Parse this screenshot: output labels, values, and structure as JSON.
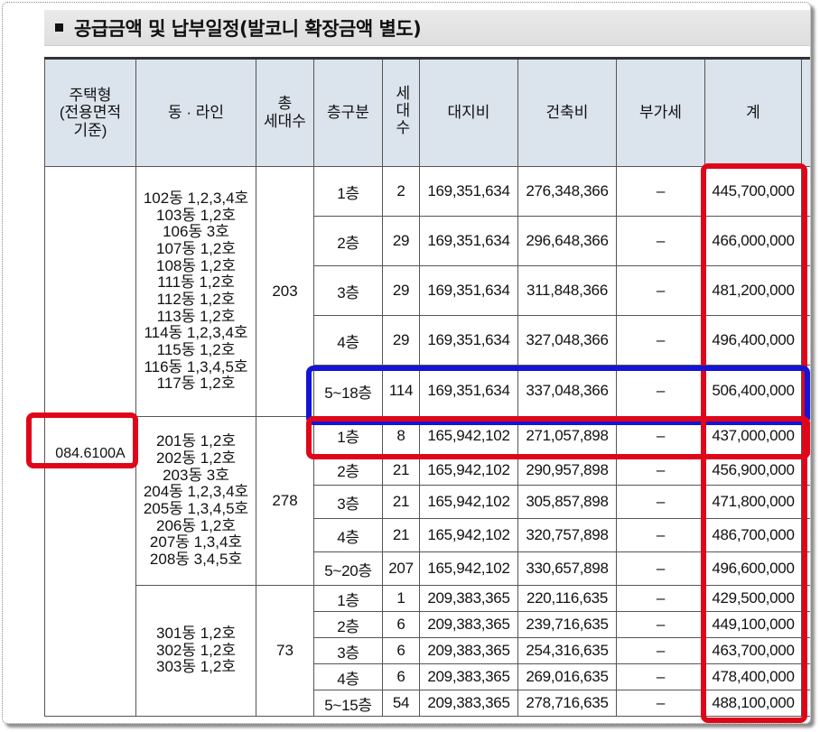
{
  "title": "공급금액 및 납부일정(발코니 확장금액 별도)",
  "headers": {
    "type": "주택형\n(전용면적\n기준)",
    "dong": "동 · 라인",
    "total_units": "총\n세대수",
    "floor": "층구분",
    "units": "세대수",
    "land": "대지비",
    "building": "건축비",
    "vat": "부가세",
    "sum": "계"
  },
  "housing_type": "084.6100A",
  "groups": [
    {
      "dongs": [
        "102동 1,2,3,4호",
        "103동 1,2호",
        "106동 3호",
        "107동 1,2호",
        "108동 1,2호",
        "111동 1,2호",
        "112동 1,2호",
        "113동 1,2호",
        "114동 1,2,3,4호",
        "115동 1,2호",
        "116동 1,3,4,5호",
        "117동 1,2호"
      ],
      "total": "203",
      "rows": [
        {
          "floor": "1층",
          "units": "2",
          "land": "169,351,634",
          "building": "276,348,366",
          "vat": "–",
          "sum": "445,700,000"
        },
        {
          "floor": "2층",
          "units": "29",
          "land": "169,351,634",
          "building": "296,648,366",
          "vat": "–",
          "sum": "466,000,000"
        },
        {
          "floor": "3층",
          "units": "29",
          "land": "169,351,634",
          "building": "311,848,366",
          "vat": "–",
          "sum": "481,200,000"
        },
        {
          "floor": "4층",
          "units": "29",
          "land": "169,351,634",
          "building": "327,048,366",
          "vat": "–",
          "sum": "496,400,000"
        },
        {
          "floor": "5~18층",
          "units": "114",
          "land": "169,351,634",
          "building": "337,048,366",
          "vat": "–",
          "sum": "506,400,000"
        }
      ]
    },
    {
      "dongs": [
        "201동 1,2호",
        "202동 1,2호",
        "203동 3호",
        "204동 1,2,3,4호",
        "205동 1,3,4,5호",
        "206동 1,2호",
        "207동 1,3,4호",
        "208동 3,4,5호"
      ],
      "total": "278",
      "rows": [
        {
          "floor": "1층",
          "units": "8",
          "land": "165,942,102",
          "building": "271,057,898",
          "vat": "–",
          "sum": "437,000,000"
        },
        {
          "floor": "2층",
          "units": "21",
          "land": "165,942,102",
          "building": "290,957,898",
          "vat": "–",
          "sum": "456,900,000"
        },
        {
          "floor": "3층",
          "units": "21",
          "land": "165,942,102",
          "building": "305,857,898",
          "vat": "–",
          "sum": "471,800,000"
        },
        {
          "floor": "4층",
          "units": "21",
          "land": "165,942,102",
          "building": "320,757,898",
          "vat": "–",
          "sum": "486,700,000"
        },
        {
          "floor": "5~20층",
          "units": "207",
          "land": "165,942,102",
          "building": "330,657,898",
          "vat": "–",
          "sum": "496,600,000"
        }
      ]
    },
    {
      "dongs": [
        "301동 1,2호",
        "302동 1,2호",
        "303동 1,2호"
      ],
      "total": "73",
      "rows": [
        {
          "floor": "1층",
          "units": "1",
          "land": "209,383,365",
          "building": "220,116,635",
          "vat": "–",
          "sum": "429,500,000"
        },
        {
          "floor": "2층",
          "units": "6",
          "land": "209,383,365",
          "building": "239,716,635",
          "vat": "–",
          "sum": "449,100,000"
        },
        {
          "floor": "3층",
          "units": "6",
          "land": "209,383,365",
          "building": "254,316,635",
          "vat": "–",
          "sum": "463,700,000"
        },
        {
          "floor": "4층",
          "units": "6",
          "land": "209,383,365",
          "building": "269,016,635",
          "vat": "–",
          "sum": "478,400,000"
        },
        {
          "floor": "5~15층",
          "units": "54",
          "land": "209,383,365",
          "building": "278,716,635",
          "vat": "–",
          "sum": "488,100,000"
        }
      ]
    }
  ],
  "colors": {
    "highlight_red": "#e0061a",
    "highlight_blue": "#1414d6",
    "header_bg": "#dbe3ec"
  }
}
